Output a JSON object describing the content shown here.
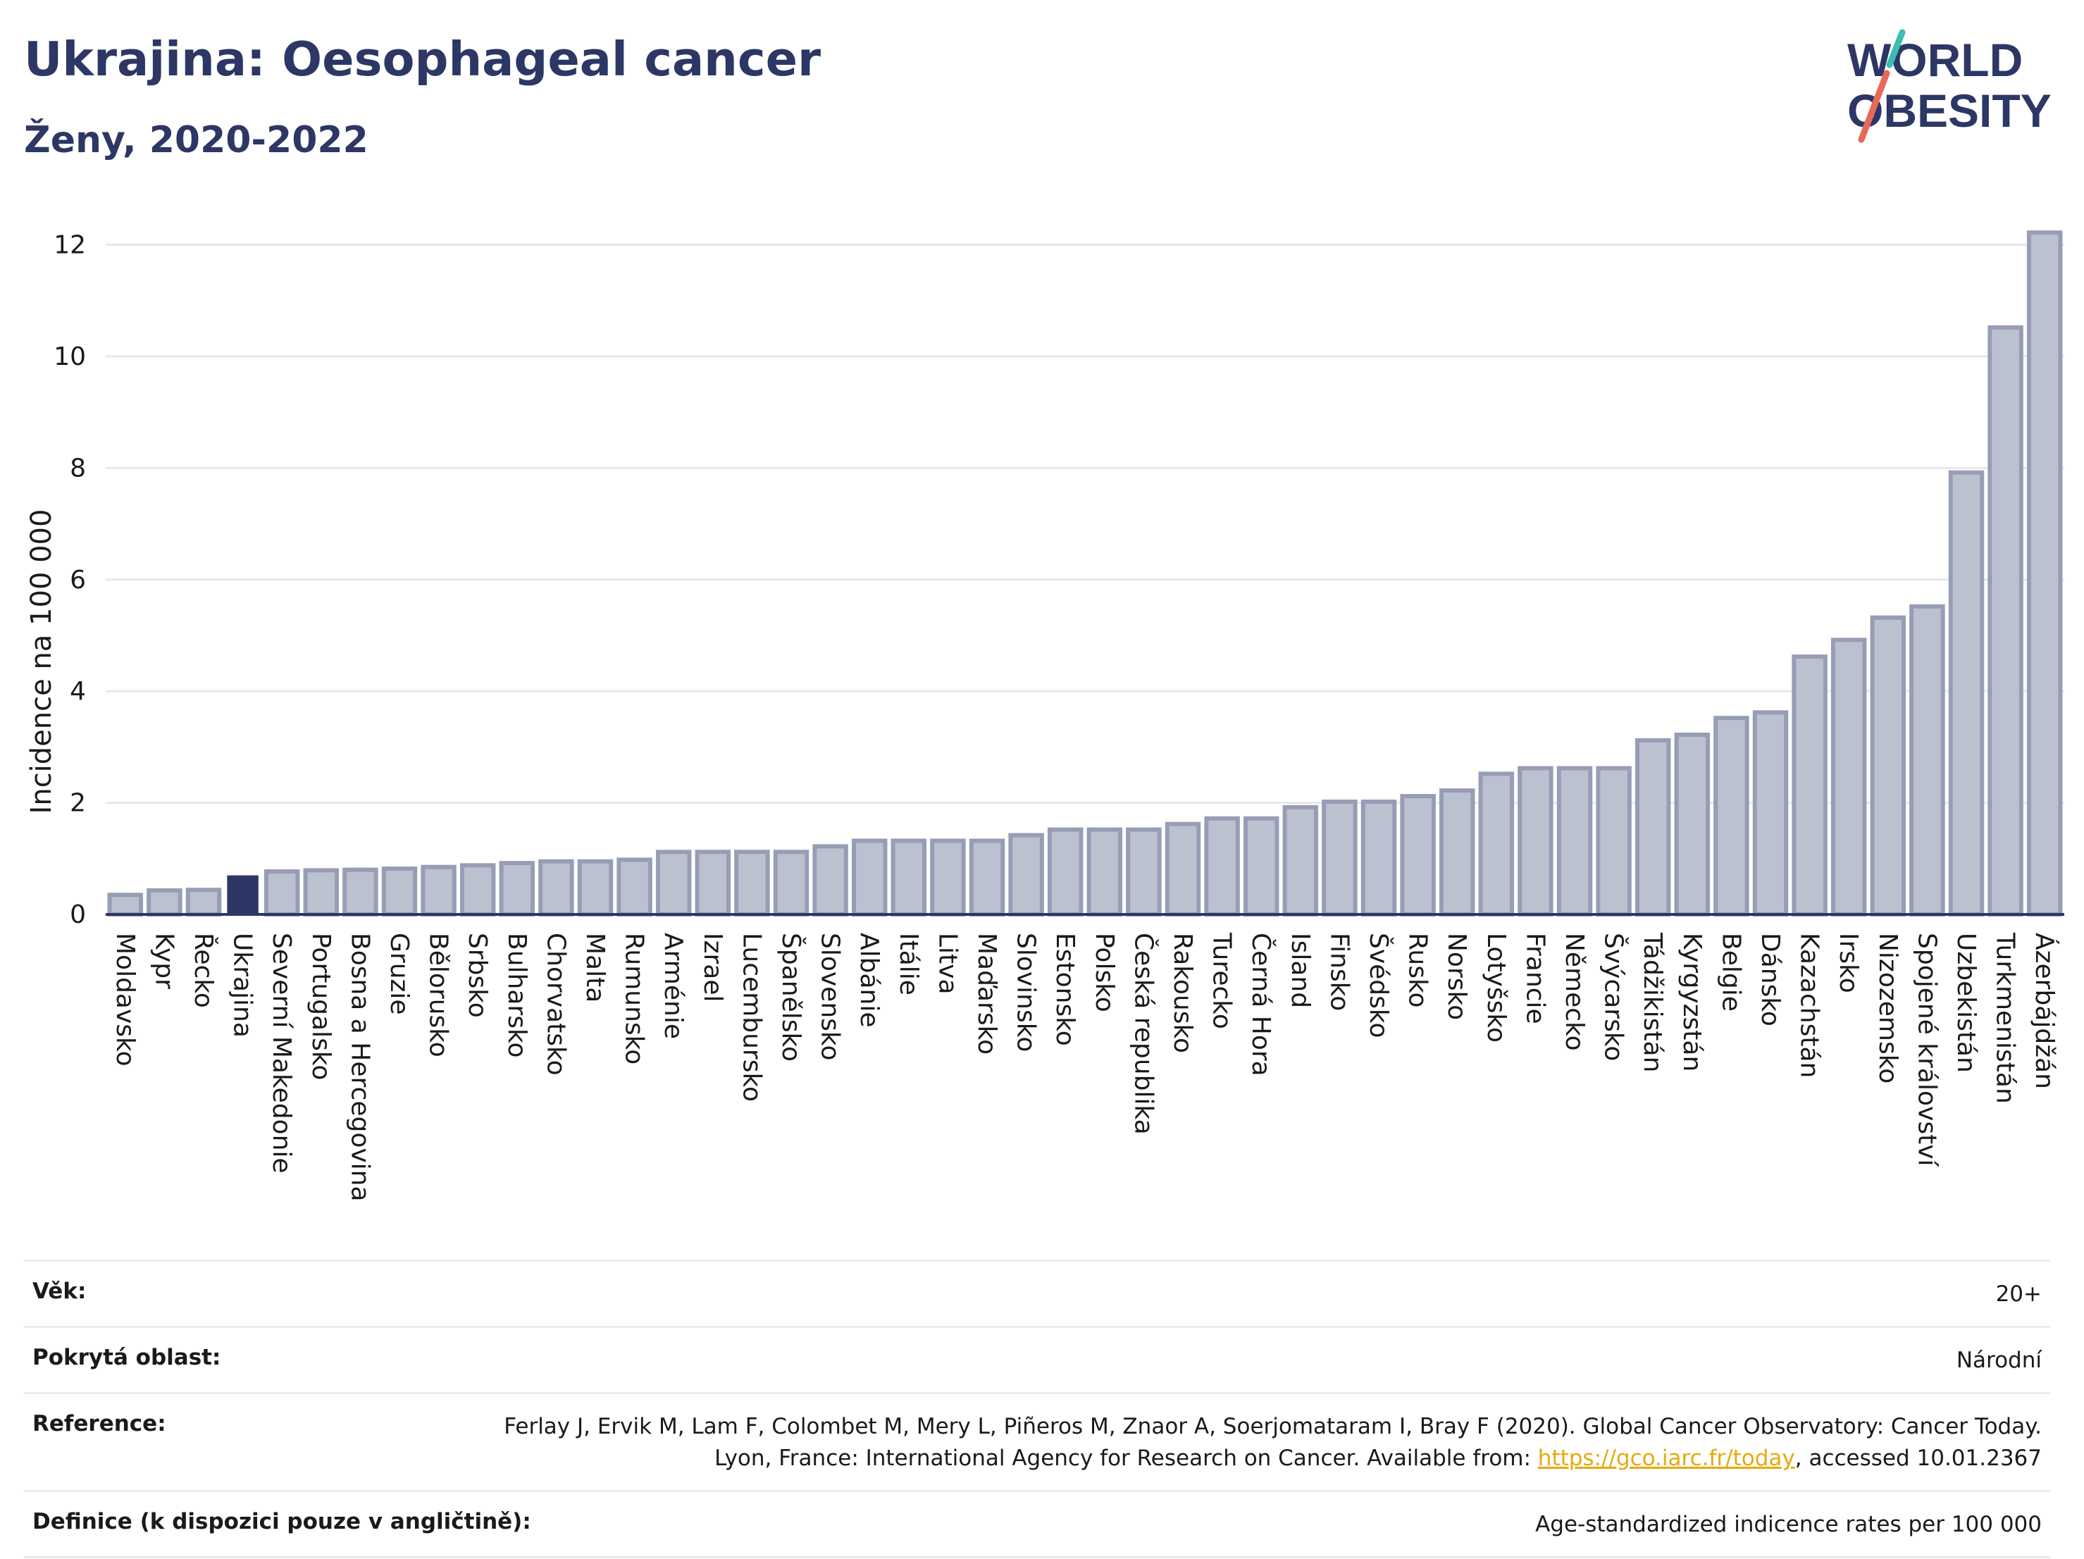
{
  "header": {
    "title": "Ukrajina: Oesophageal cancer",
    "subtitle": "Ženy, 2020-2022"
  },
  "logo": {
    "line1": "WORLD",
    "line2": "OBESITY",
    "accent_colors": [
      "#3cbcb4",
      "#e8685a"
    ]
  },
  "chart_data": {
    "type": "bar",
    "title": "Ukrajina: Oesophageal cancer",
    "subtitle": "Ženy, 2020-2022",
    "ylabel": "Incidence na 100 000",
    "xlabel": "",
    "ylim": [
      0,
      12.6
    ],
    "yticks": [
      0,
      2,
      4,
      6,
      8,
      10,
      12
    ],
    "grid": true,
    "highlight": "Ukrajina",
    "colors": {
      "bar": "#bcc1d0",
      "bar_edge": "#979db5",
      "highlight": "#2d3765",
      "axis": "#2d3765",
      "grid": "#e6e8ee"
    },
    "categories": [
      "Moldavsko",
      "Kypr",
      "Řecko",
      "Ukrajina",
      "Severní Makedonie",
      "Portugalsko",
      "Bosna a Hercegovina",
      "Gruzie",
      "Bělorusko",
      "Srbsko",
      "Bulharsko",
      "Chorvatsko",
      "Malta",
      "Rumunsko",
      "Arménie",
      "Izrael",
      "Lucembursko",
      "Španělsko",
      "Slovensko",
      "Albánie",
      "Itálie",
      "Litva",
      "Maďarsko",
      "Slovinsko",
      "Estonsko",
      "Polsko",
      "Česká republika",
      "Rakousko",
      "Turecko",
      "Černá Hora",
      "Island",
      "Finsko",
      "Švédsko",
      "Rusko",
      "Norsko",
      "Lotyšsko",
      "Francie",
      "Německo",
      "Švýcarsko",
      "Tádžikistán",
      "Kyrgyzstán",
      "Belgie",
      "Dánsko",
      "Kazachstán",
      "Irsko",
      "Nizozemsko",
      "Spojené království",
      "Uzbekistán",
      "Turkmenistán",
      "Ázerbájdžán"
    ],
    "values": [
      0.35,
      0.43,
      0.44,
      0.7,
      0.77,
      0.79,
      0.8,
      0.82,
      0.85,
      0.88,
      0.92,
      0.95,
      0.95,
      0.98,
      1.12,
      1.12,
      1.12,
      1.12,
      1.22,
      1.32,
      1.32,
      1.32,
      1.32,
      1.42,
      1.52,
      1.52,
      1.52,
      1.62,
      1.72,
      1.72,
      1.92,
      2.02,
      2.02,
      2.12,
      2.22,
      2.52,
      2.62,
      2.62,
      2.62,
      3.12,
      3.22,
      3.52,
      3.62,
      4.62,
      4.92,
      5.32,
      5.52,
      7.92,
      10.52,
      12.22
    ]
  },
  "meta": {
    "age_label": "Věk:",
    "age_value": "20+",
    "coverage_label": "Pokrytá oblast:",
    "coverage_value": "Národní",
    "reference_label": "Reference:",
    "reference_text_1": "Ferlay J, Ervik M, Lam F, Colombet M, Mery L, Piñeros M, Znaor A, Soerjomataram I, Bray F (2020). Global Cancer Observatory: Cancer Today. Lyon, France: International Agency for Research on Cancer. Available from: ",
    "reference_link": "https://gco.iarc.fr/today",
    "reference_text_2": ", accessed 10.01.2367",
    "definition_label": "Definice (k dispozici pouze v angličtině):",
    "definition_value": "Age-standardized indicence rates per 100 000"
  }
}
